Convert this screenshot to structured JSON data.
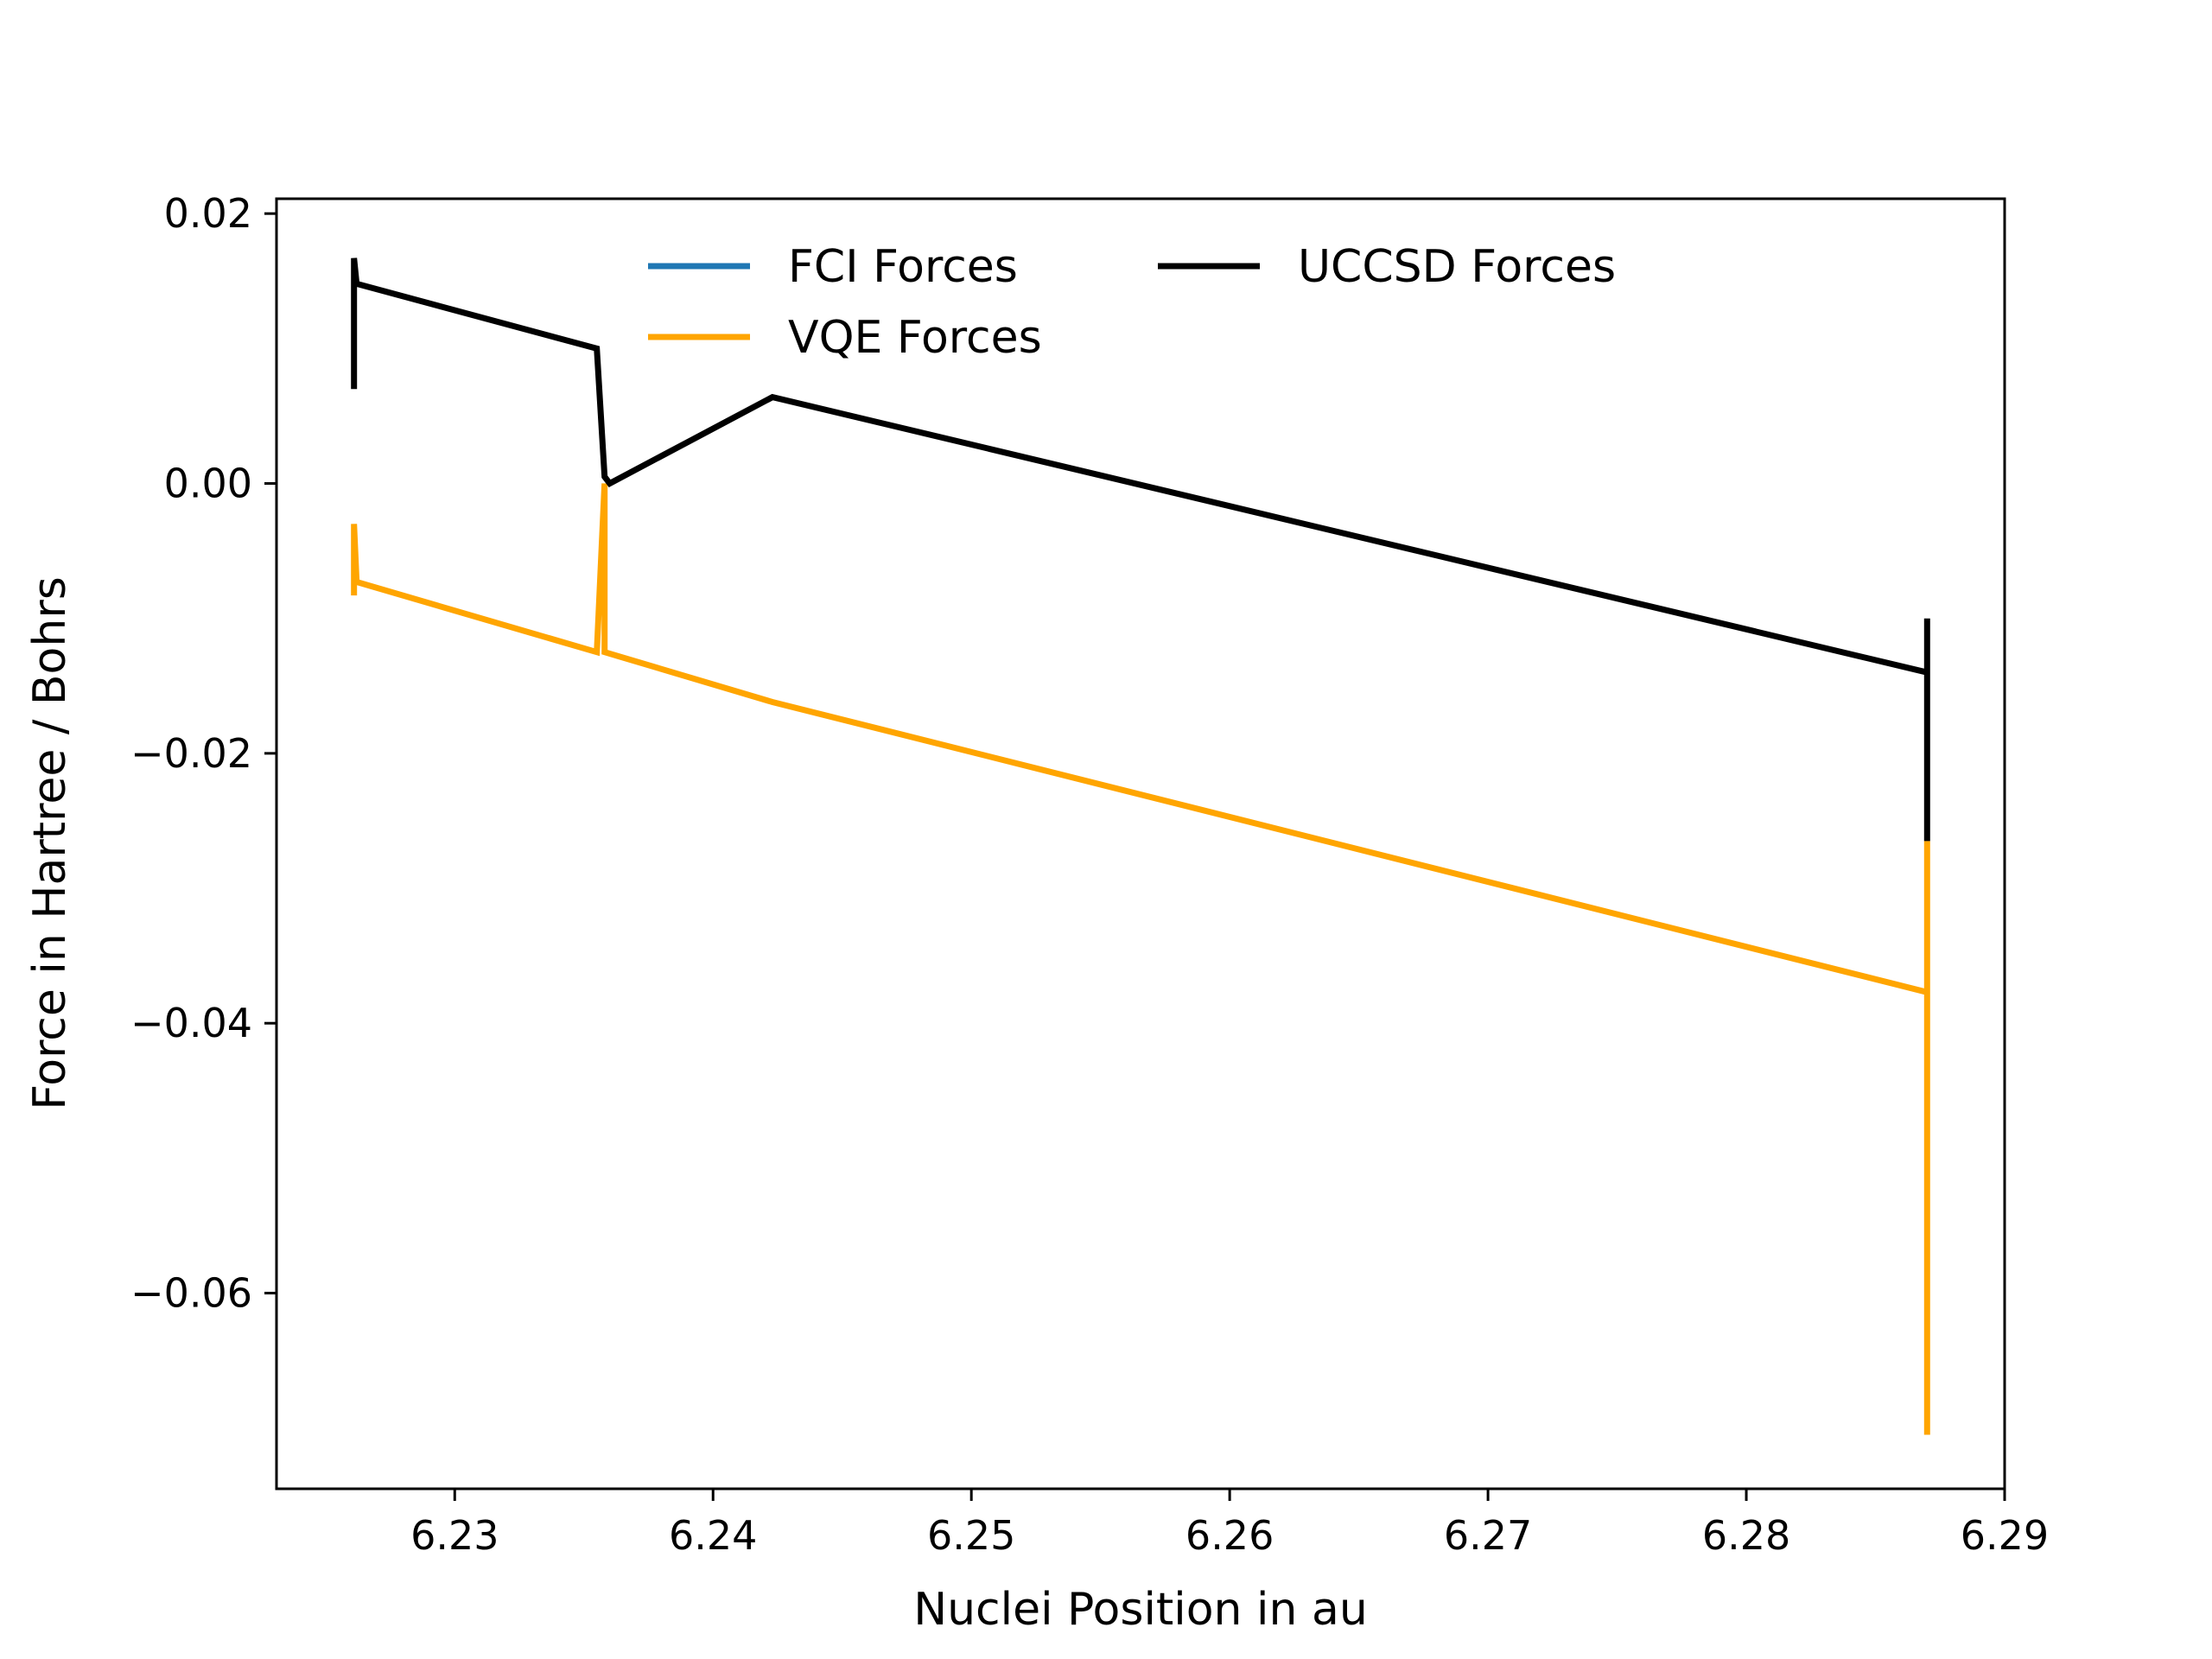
{
  "chart_data": {
    "type": "line",
    "title": "",
    "xlabel": "Nuclei Position in au",
    "ylabel": "Force in Hartree / Bohrs",
    "xlim": [
      6.2231,
      6.29
    ],
    "ylim": [
      -0.0745,
      0.0211
    ],
    "xticks": [
      {
        "value": 6.23,
        "label": "6.23"
      },
      {
        "value": 6.24,
        "label": "6.24"
      },
      {
        "value": 6.25,
        "label": "6.25"
      },
      {
        "value": 6.26,
        "label": "6.26"
      },
      {
        "value": 6.27,
        "label": "6.27"
      },
      {
        "value": 6.28,
        "label": "6.28"
      },
      {
        "value": 6.29,
        "label": "6.29"
      }
    ],
    "yticks": [
      {
        "value": 0.02,
        "label": "0.02"
      },
      {
        "value": 0.0,
        "label": "0.00"
      },
      {
        "value": -0.02,
        "label": "−0.02"
      },
      {
        "value": -0.04,
        "label": "−0.04"
      },
      {
        "value": -0.06,
        "label": "−0.06"
      }
    ],
    "grid": false,
    "legend": {
      "placement": "upper-center",
      "columns": 2
    },
    "series": [
      {
        "name": "FCI Forces",
        "color": "#1f77b4",
        "x": [],
        "y": []
      },
      {
        "name": "VQE Forces",
        "color": "#ffa500",
        "x": [
          6.2261,
          6.2261,
          6.2262,
          6.2355,
          6.2358,
          6.2358,
          6.2423,
          6.287,
          6.287,
          6.287
        ],
        "y": [
          -0.0083,
          -0.003,
          -0.0073,
          -0.0125,
          0.0,
          -0.0125,
          -0.0162,
          -0.0377,
          -0.0705,
          -0.0265
        ]
      },
      {
        "name": "UCCSD Forces",
        "color": "#000000",
        "x": [
          6.2261,
          6.2261,
          6.2262,
          6.2355,
          6.2358,
          6.236,
          6.2423,
          6.287,
          6.287,
          6.287
        ],
        "y": [
          0.007,
          0.0167,
          0.0148,
          0.01,
          0.0005,
          0.0,
          0.0064,
          -0.014,
          -0.0265,
          -0.01
        ]
      }
    ]
  }
}
